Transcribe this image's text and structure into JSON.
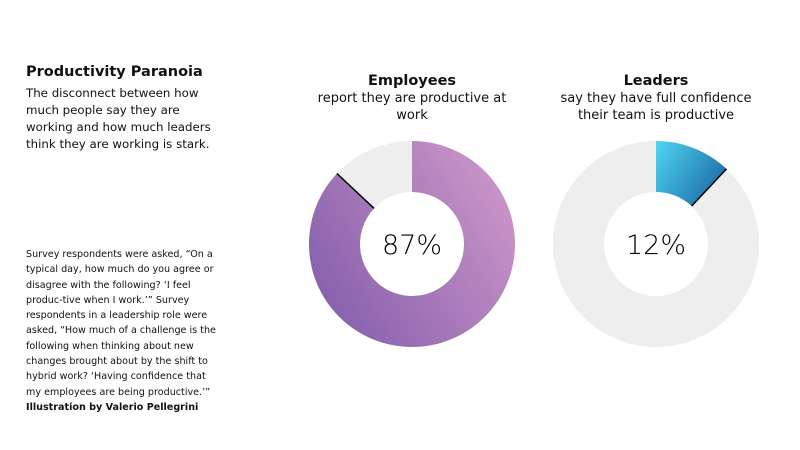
{
  "title": "Productivity Paranoia",
  "intro": "The disconnect between how much people say they are working and how much leaders think they are working is stark.",
  "note": "Survey respondents were asked, “On a typical day, how much do you agree or disagree with the following? ‘I feel produc-tive when I work.’” Survey respondents in a leadership role were asked, “How much of a challenge is the following when thinking about new changes brought about by the shift to hybrid work? ‘Having confidence that my employees are being productive.’”",
  "credit": "Illustration by Valerio Pellegrini",
  "chart_data": [
    {
      "type": "pie",
      "donut": true,
      "title": "Employees",
      "subtitle": "report they are productive at work",
      "value": 87,
      "label": "87%",
      "colors": {
        "fill_start": "#d49ccb",
        "fill_end": "#8a63ae",
        "remainder": "#eeeeee"
      }
    },
    {
      "type": "pie",
      "donut": true,
      "title": "Leaders",
      "subtitle": "say they have full confidence their team is productive",
      "value": 12,
      "label": "12%",
      "colors": {
        "fill_start": "#4fd6f2",
        "fill_end": "#1e6fa8",
        "remainder": "#eeeeee"
      }
    }
  ]
}
